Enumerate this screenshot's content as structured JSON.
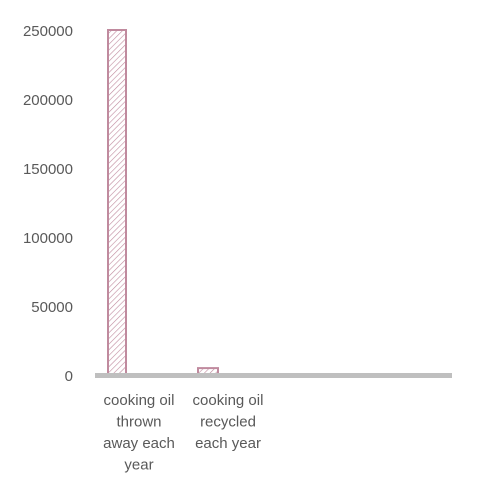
{
  "chart_data": {
    "type": "bar",
    "title": "",
    "xlabel": "",
    "ylabel": "",
    "categories": [
      "cooking oil thrown away each year",
      "cooking oil recycled each year"
    ],
    "category_lines": [
      [
        "cooking oil",
        "thrown",
        "away each",
        "year"
      ],
      [
        "cooking oil",
        "recycled",
        "each year"
      ]
    ],
    "values": [
      250000,
      5000
    ],
    "ylim": [
      0,
      250000
    ],
    "yticks": [
      0,
      50000,
      100000,
      150000,
      200000,
      250000
    ],
    "ytick_labels": [
      "0",
      "50000",
      "100000",
      "150000",
      "200000",
      "250000"
    ],
    "grid": false,
    "legend": "none",
    "colors": {
      "bar_stroke": "#C08A9E",
      "bar_hatch": "#C08A9E",
      "axis": "#BFBFBF",
      "text": "#595959"
    }
  }
}
